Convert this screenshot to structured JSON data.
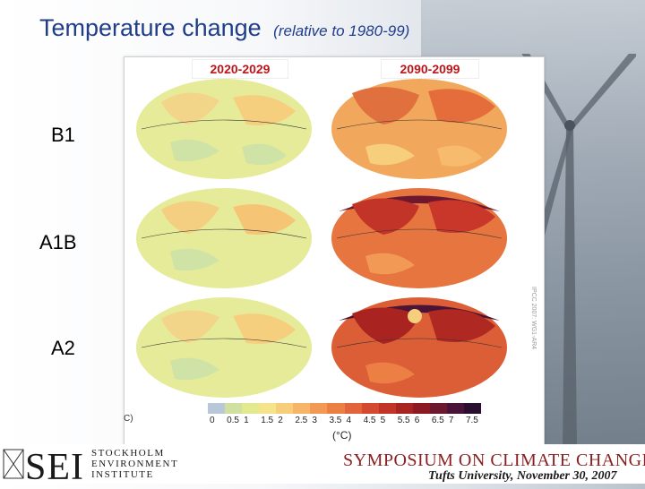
{
  "title": "Temperature change",
  "subtitle": "(relative to 1980-99)",
  "columns": [
    "2020-2029",
    "2090-2099"
  ],
  "rows": [
    "B1",
    "A1B",
    "A2"
  ],
  "colorbar": {
    "ticks": [
      "0",
      "0.5",
      "1",
      "1.5",
      "2",
      "2.5",
      "3",
      "3.5",
      "4",
      "4.5",
      "5",
      "5.5",
      "6",
      "6.5",
      "7",
      "7.5"
    ],
    "unit": "(°C)",
    "colors": [
      "#b9c8d8",
      "#cfe0a0",
      "#e3e98e",
      "#f5e48c",
      "#f7cf7c",
      "#f6b568",
      "#f29a55",
      "#ec7f44",
      "#e2643a",
      "#d44a30",
      "#c23328",
      "#a92420",
      "#8c1a22",
      "#6e1830",
      "#4a1438",
      "#2a0f30"
    ]
  },
  "part_label": "C)",
  "ipcc_label": "IPCC 2007: WG1-AR4",
  "footer": {
    "logo": "SEI",
    "org_line1": "STOCKHOLM",
    "org_line2": "ENVIRONMENT",
    "org_line3": "INSTITUTE",
    "event": "SYMPOSIUM ON CLIMATE CHANGE",
    "venue": "Tufts University, November 30, 2007"
  }
}
